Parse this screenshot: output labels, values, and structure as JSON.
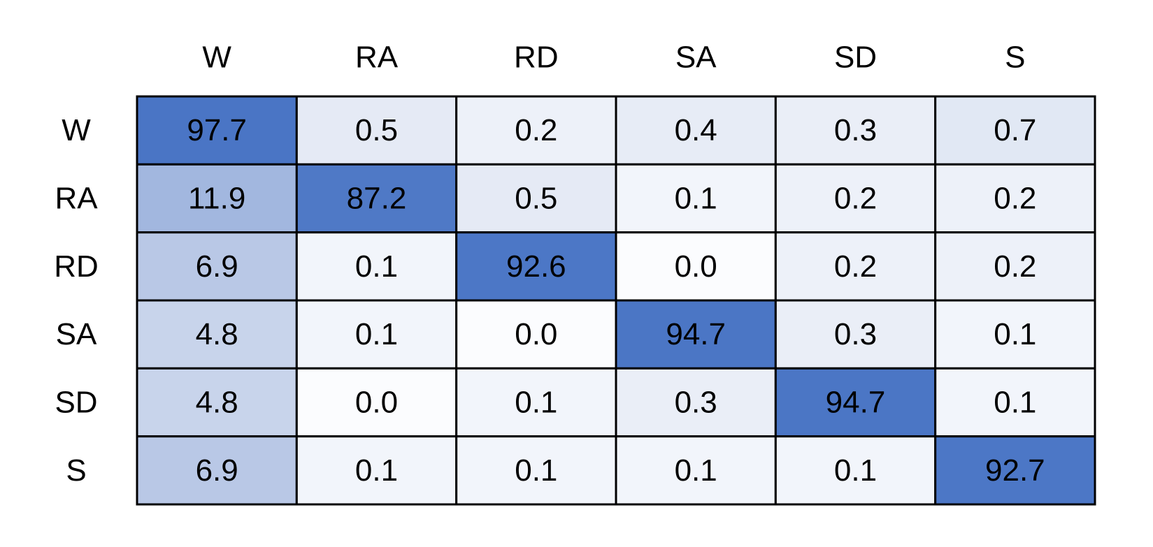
{
  "chart_data": {
    "type": "heatmap",
    "title": "",
    "xlabel": "",
    "ylabel": "",
    "columns": [
      "W",
      "RA",
      "RD",
      "SA",
      "SD",
      "S"
    ],
    "rows": [
      "W",
      "RA",
      "RD",
      "SA",
      "SD",
      "S"
    ],
    "values": [
      [
        97.7,
        0.5,
        0.2,
        0.4,
        0.3,
        0.7
      ],
      [
        11.9,
        87.2,
        0.5,
        0.1,
        0.2,
        0.2
      ],
      [
        6.9,
        0.1,
        92.6,
        0.0,
        0.2,
        0.2
      ],
      [
        4.8,
        0.1,
        0.0,
        94.7,
        0.3,
        0.1
      ],
      [
        4.8,
        0.0,
        0.1,
        0.3,
        94.7,
        0.1
      ],
      [
        6.9,
        0.1,
        0.1,
        0.1,
        0.1,
        92.7
      ]
    ],
    "value_format": "0.1",
    "colormap": {
      "low": "#fbfcfe",
      "light": "#ccd7ec",
      "high": "#4a75c5"
    },
    "cell_border_color": "#000000"
  }
}
